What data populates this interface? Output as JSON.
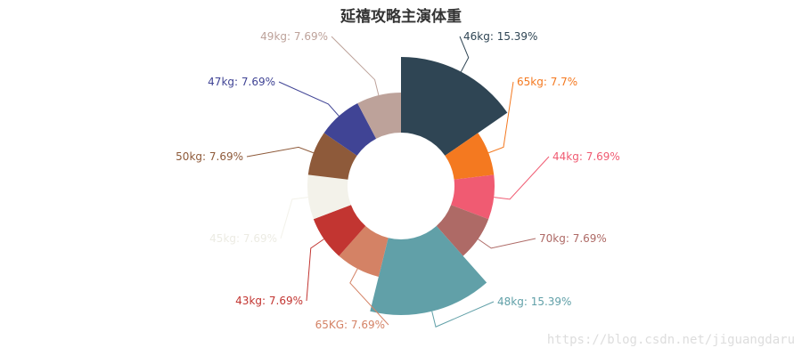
{
  "chart_data": {
    "type": "pie",
    "variant": "rose-donut",
    "title": "延禧攻略主演体重",
    "slices": [
      {
        "name": "46kg",
        "percent": "15.39%",
        "value": 2,
        "color": "#2f4554"
      },
      {
        "name": "65kg",
        "percent": "7.7%",
        "value": 1,
        "color": "#f47920"
      },
      {
        "name": "44kg",
        "percent": "7.69%",
        "value": 1,
        "color": "#f05b72"
      },
      {
        "name": "70kg",
        "percent": "7.69%",
        "value": 1,
        "color": "#ae6a66"
      },
      {
        "name": "48kg",
        "percent": "15.39%",
        "value": 2,
        "color": "#61a0a8"
      },
      {
        "name": "65KG",
        "percent": "7.69%",
        "value": 1,
        "color": "#d48265"
      },
      {
        "name": "43kg",
        "percent": "7.69%",
        "value": 1,
        "color": "#c23531"
      },
      {
        "name": "45kg",
        "percent": "7.69%",
        "value": 1,
        "color": "#f3f2ea"
      },
      {
        "name": "50kg",
        "percent": "7.69%",
        "value": 1,
        "color": "#8e5a3a"
      },
      {
        "name": "47kg",
        "percent": "7.69%",
        "value": 1,
        "color": "#404495"
      },
      {
        "name": "49kg",
        "percent": "7.69%",
        "value": 1,
        "color": "#bda29a"
      }
    ],
    "legend": "none"
  },
  "watermark": "https://blog.csdn.net/jiguangdaru"
}
